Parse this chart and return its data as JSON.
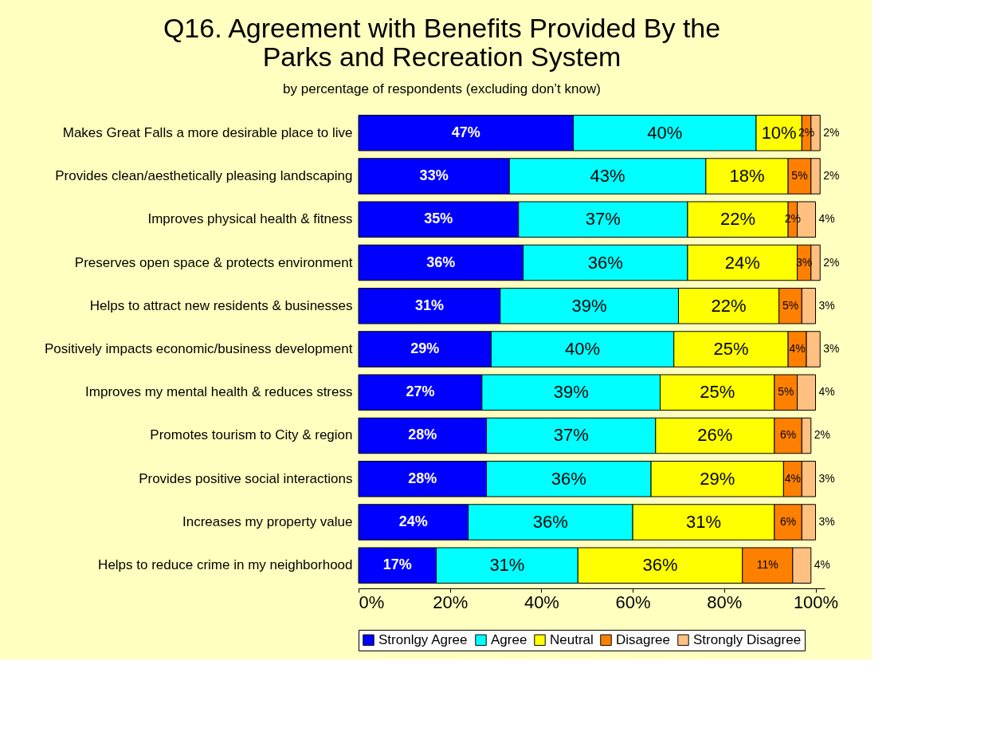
{
  "chart_data": {
    "type": "bar",
    "orientation": "horizontal",
    "stacked": true,
    "title": "Q16. Agreement with Benefits Provided By the Parks and Recreation System",
    "subtitle": "by percentage of respondents (excluding don’t know)",
    "categories": [
      "Makes Great Falls a more desirable place to live",
      "Provides clean/aesthetically pleasing landscaping",
      "Improves physical health & fitness",
      "Preserves open space & protects environment",
      "Helps to attract new residents & businesses",
      "Positively impacts economic/business development",
      "Improves my mental health & reduces stress",
      "Promotes tourism to City & region",
      "Provides positive social interactions",
      "Increases my property value",
      "Helps to reduce crime in my neighborhood"
    ],
    "series": [
      {
        "name": "Stronlgy Agree",
        "color": "#0000ff",
        "values": [
          47,
          33,
          35,
          36,
          31,
          29,
          27,
          28,
          28,
          24,
          17
        ],
        "value_labels": [
          "47%",
          "33%",
          "35%",
          "36%",
          "31%",
          "29%",
          "27%",
          "28%",
          "28%",
          "24%",
          "17%"
        ]
      },
      {
        "name": "Agree",
        "color": "#00ffff",
        "values": [
          40,
          43,
          37,
          36,
          39,
          40,
          39,
          37,
          36,
          36,
          31
        ],
        "value_labels": [
          "40%",
          "43%",
          "37%",
          "36%",
          "39%",
          "40%",
          "39%",
          "37%",
          "36%",
          "36%",
          "31%"
        ]
      },
      {
        "name": "Neutral",
        "color": "#ffff00",
        "values": [
          10,
          18,
          22,
          24,
          22,
          25,
          25,
          26,
          29,
          31,
          36
        ],
        "value_labels": [
          "10%",
          "18%",
          "22%",
          "24%",
          "22%",
          "25%",
          "25%",
          "26%",
          "29%",
          "31%",
          "36%"
        ]
      },
      {
        "name": "Disagree",
        "color": "#ff8000",
        "values": [
          2,
          5,
          2,
          3,
          5,
          4,
          5,
          6,
          4,
          6,
          11
        ],
        "value_labels": [
          "2%",
          "5%",
          "2%",
          "3%",
          "5%",
          "4%",
          "5%",
          "6%",
          "4%",
          "6%",
          "11%"
        ]
      },
      {
        "name": "Strongly Disagree",
        "color": "#ffc080",
        "values": [
          2,
          2,
          4,
          2,
          3,
          3,
          4,
          2,
          3,
          3,
          4
        ],
        "value_labels": [
          "2%",
          "2%",
          "4%",
          "2%",
          "3%",
          "3%",
          "4%",
          "2%",
          "3%",
          "3%",
          "4%"
        ]
      }
    ],
    "xlim": [
      0,
      102
    ],
    "xticks": [
      {
        "value": 0,
        "label": "0%"
      },
      {
        "value": 20,
        "label": "20%"
      },
      {
        "value": 40,
        "label": "40%"
      },
      {
        "value": 60,
        "label": "60%"
      },
      {
        "value": 80,
        "label": "80%"
      },
      {
        "value": 100,
        "label": "100%"
      }
    ],
    "grid": false,
    "legend": "bottom"
  }
}
